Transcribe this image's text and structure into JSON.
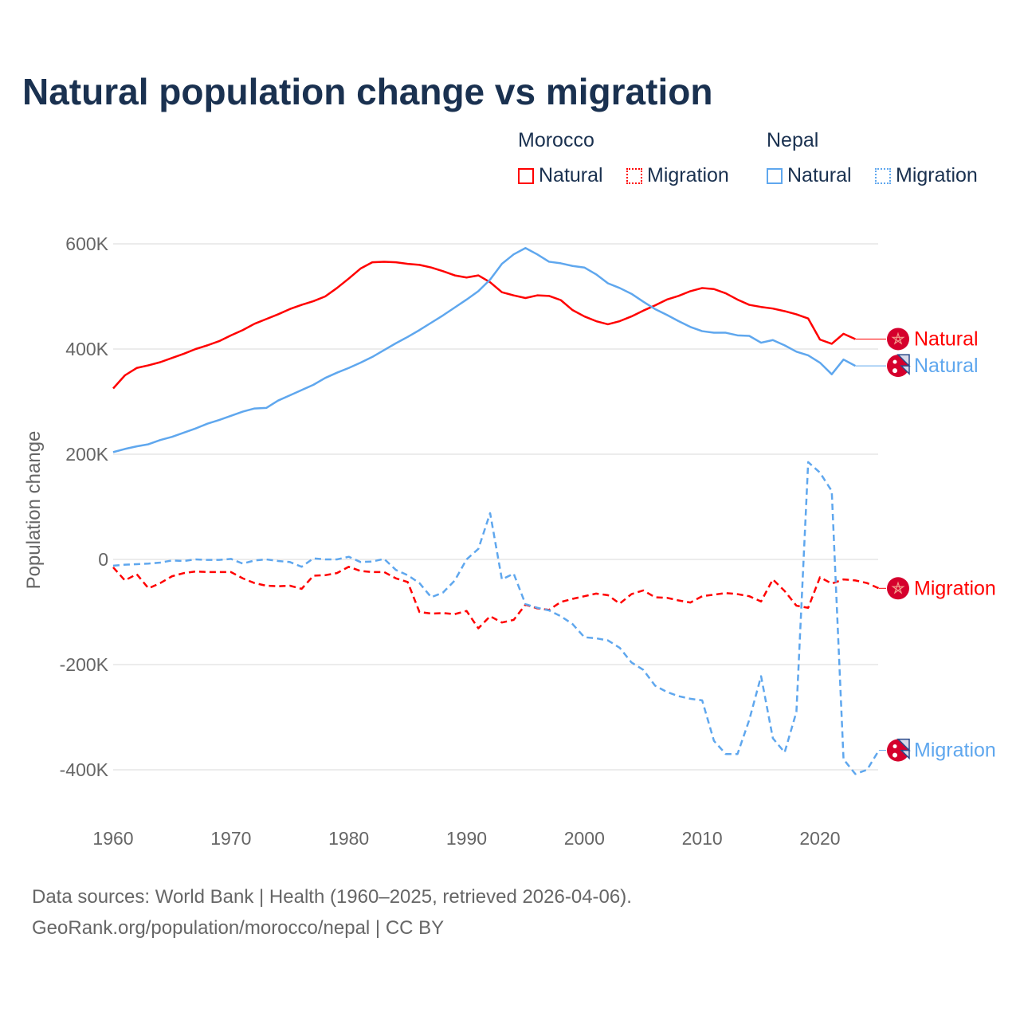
{
  "title": "Natural population change vs migration",
  "legend": {
    "groups": [
      {
        "name": "Morocco",
        "items": [
          {
            "label": "Natural",
            "style": "solid"
          },
          {
            "label": "Migration",
            "style": "dotted"
          }
        ],
        "color": "#ff0000"
      },
      {
        "name": "Nepal",
        "items": [
          {
            "label": "Natural",
            "style": "solid"
          },
          {
            "label": "Migration",
            "style": "dotted"
          }
        ],
        "color": "#5fa7ee"
      }
    ]
  },
  "footer": {
    "line1": "Data sources: World Bank | Health (1960–2025, retrieved 2026-04-06).",
    "line2": "GeoRank.org/population/morocco/nepal | CC BY"
  },
  "chart_data": {
    "type": "line",
    "title": "Natural population change vs migration",
    "xlabel": "",
    "ylabel": "Population change",
    "xlim": [
      1960,
      2025
    ],
    "ylim": [
      -500000,
      650000
    ],
    "x_ticks": [
      1960,
      1970,
      1980,
      1990,
      2000,
      2010,
      2020
    ],
    "x_tick_labels": [
      "1960",
      "1970",
      "1980",
      "1990",
      "2000",
      "2010",
      "2020"
    ],
    "y_ticks": [
      600000,
      400000,
      200000,
      0,
      -200000,
      -400000
    ],
    "y_tick_labels": [
      "600K",
      "400K",
      "200K",
      "0",
      "-200K",
      "-400K"
    ],
    "grid": true,
    "legend_position": "top-right",
    "series": [
      {
        "name": "Morocco Natural",
        "label": "Natural",
        "country": "Morocco",
        "color": "#ff0000",
        "dash": false,
        "start": 1960,
        "values": [
          325,
          350,
          364,
          369,
          375,
          383,
          391,
          400,
          407,
          415,
          426,
          436,
          448,
          457,
          466,
          476,
          484,
          491,
          500,
          516,
          534,
          553,
          565,
          566,
          565,
          562,
          560,
          555,
          548,
          540,
          536,
          540,
          527,
          508,
          502,
          497,
          502,
          501,
          493,
          474,
          462,
          453,
          447,
          453,
          462,
          473,
          483,
          494,
          501,
          510,
          516,
          514,
          506,
          494,
          484,
          480,
          477,
          472,
          466,
          458,
          418,
          410,
          429,
          419
        ]
      },
      {
        "name": "Nepal Natural",
        "label": "Natural",
        "country": "Nepal",
        "color": "#5fa7ee",
        "dash": false,
        "start": 1960,
        "values": [
          204,
          210,
          215,
          219,
          227,
          233,
          241,
          249,
          258,
          265,
          273,
          281,
          287,
          288,
          302,
          312,
          322,
          332,
          345,
          355,
          364,
          374,
          385,
          398,
          411,
          423,
          436,
          450,
          464,
          479,
          494,
          510,
          532,
          562,
          580,
          592,
          580,
          566,
          563,
          558,
          555,
          542,
          525,
          516,
          505,
          490,
          476,
          465,
          453,
          442,
          434,
          431,
          431,
          426,
          425,
          412,
          417,
          407,
          395,
          388,
          374,
          352,
          380,
          368
        ]
      },
      {
        "name": "Morocco Migration",
        "label": "Migration",
        "country": "Morocco",
        "color": "#ff0000",
        "dash": true,
        "start": 1960,
        "values": [
          -15,
          -40,
          -28,
          -55,
          -45,
          -32,
          -26,
          -23,
          -24,
          -24,
          -24,
          -36,
          -45,
          -50,
          -51,
          -50,
          -56,
          -31,
          -30,
          -26,
          -14,
          -22,
          -24,
          -24,
          -36,
          -43,
          -100,
          -103,
          -102,
          -104,
          -98,
          -131,
          -108,
          -120,
          -115,
          -86,
          -93,
          -96,
          -81,
          -75,
          -70,
          -65,
          -68,
          -84,
          -66,
          -59,
          -72,
          -73,
          -78,
          -82,
          -70,
          -67,
          -64,
          -66,
          -70,
          -80,
          -38,
          -60,
          -88,
          -92,
          -34,
          -46,
          -38,
          -40,
          -45,
          -55
        ]
      },
      {
        "name": "Nepal Migration",
        "label": "Migration",
        "country": "Nepal",
        "color": "#5fa7ee",
        "dash": true,
        "start": 1960,
        "values": [
          -12,
          -10,
          -9,
          -8,
          -6,
          -2,
          -3,
          0,
          -1,
          -1,
          1,
          -8,
          -2,
          0,
          -3,
          -5,
          -14,
          2,
          0,
          0,
          5,
          -5,
          -4,
          1,
          -20,
          -30,
          -45,
          -72,
          -63,
          -40,
          0,
          20,
          88,
          -38,
          -27,
          -85,
          -92,
          -97,
          -108,
          -123,
          -148,
          -150,
          -154,
          -168,
          -196,
          -210,
          -240,
          -252,
          -260,
          -265,
          -268,
          -345,
          -370,
          -370,
          -305,
          -222,
          -340,
          -367,
          -290,
          185,
          165,
          130,
          -380,
          -408,
          -400,
          -363
        ]
      }
    ],
    "value_unit": "thousands"
  }
}
